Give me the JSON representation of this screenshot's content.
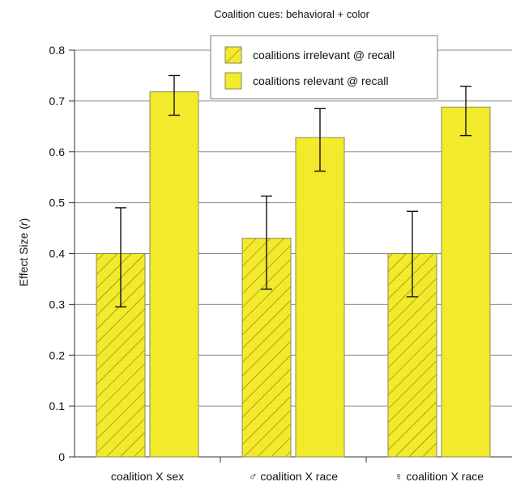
{
  "chart_data": {
    "type": "bar",
    "title": "Coalition cues: behavioral + color",
    "ylabel": "Effect Size (r)",
    "xlabel": "",
    "ylim": [
      0,
      0.8
    ],
    "yticks": [
      "0",
      "0.1",
      "0.2",
      "0.3",
      "0.4",
      "0.5",
      "0.6",
      "0.7",
      "0.8"
    ],
    "grid": "horizontal",
    "legend_position": "top-center",
    "categories": [
      "coalition X sex",
      "♂ coalition X race",
      "♀ coalition X race"
    ],
    "series": [
      {
        "name": "coalitions irrelevant @ recall",
        "pattern": "hatched",
        "color": "#f2ea2a",
        "values": [
          0.4,
          0.43,
          0.4
        ],
        "error_low": [
          0.295,
          0.33,
          0.315
        ],
        "error_high": [
          0.49,
          0.513,
          0.483
        ]
      },
      {
        "name": "coalitions relevant @ recall",
        "pattern": "solid",
        "color": "#f2ea2a",
        "values": [
          0.718,
          0.628,
          0.688
        ],
        "error_low": [
          0.672,
          0.562,
          0.632
        ],
        "error_high": [
          0.75,
          0.685,
          0.729
        ]
      }
    ]
  }
}
